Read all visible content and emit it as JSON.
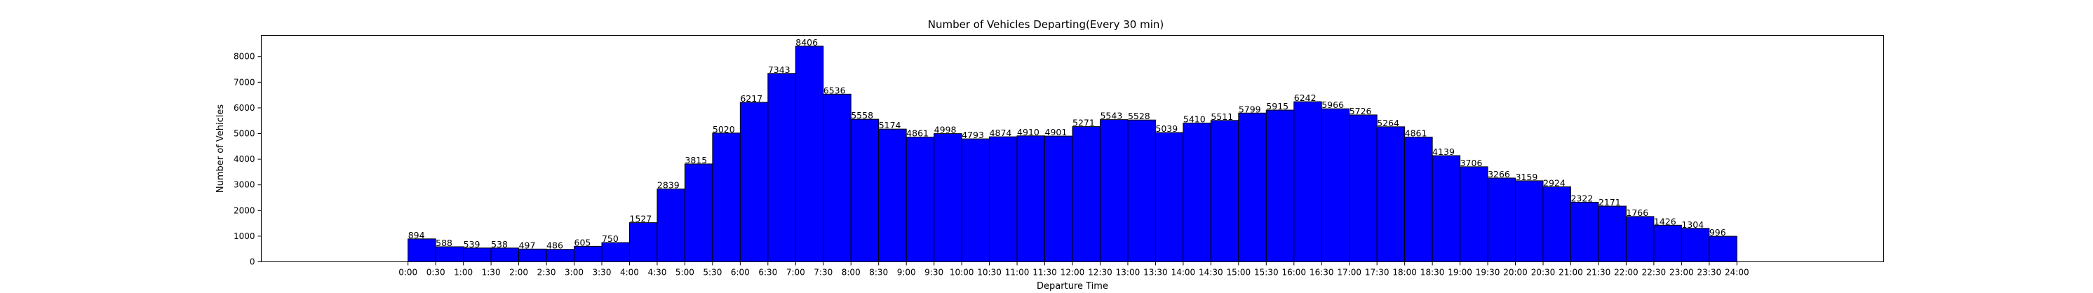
{
  "chart_data": {
    "type": "bar",
    "title": "Number of Vehicles Departing(Every 30 min)",
    "xlabel": "Departure Time",
    "ylabel": "Number of Vehicles",
    "categories": [
      "0:00",
      "0:30",
      "1:00",
      "1:30",
      "2:00",
      "2:30",
      "3:00",
      "3:30",
      "4:00",
      "4:30",
      "5:00",
      "5:30",
      "6:00",
      "6:30",
      "7:00",
      "7:30",
      "8:00",
      "8:30",
      "9:00",
      "9:30",
      "10:00",
      "10:30",
      "11:00",
      "11:30",
      "12:00",
      "12:30",
      "13:00",
      "13:30",
      "14:00",
      "14:30",
      "15:00",
      "15:30",
      "16:00",
      "16:30",
      "17:00",
      "17:30",
      "18:00",
      "18:30",
      "19:00",
      "19:30",
      "20:00",
      "20:30",
      "21:00",
      "21:30",
      "22:00",
      "22:30",
      "23:00",
      "23:30"
    ],
    "values": [
      894,
      588,
      539,
      538,
      497,
      486,
      605,
      750,
      1527,
      2839,
      3815,
      5020,
      6217,
      7343,
      8406,
      6536,
      5558,
      5174,
      4861,
      4998,
      4793,
      4874,
      4910,
      4901,
      5271,
      5543,
      5528,
      5039,
      5410,
      5511,
      5799,
      5915,
      6242,
      5966,
      5726,
      5264,
      4861,
      4139,
      3706,
      3266,
      3159,
      2924,
      2322,
      2171,
      1766,
      1426,
      1304,
      996
    ],
    "x_ticks": [
      "0:00",
      "0:30",
      "1:00",
      "1:30",
      "2:00",
      "2:30",
      "3:00",
      "3:30",
      "4:00",
      "4:30",
      "5:00",
      "5:30",
      "6:00",
      "6:30",
      "7:00",
      "7:30",
      "8:00",
      "8:30",
      "9:00",
      "9:30",
      "10:00",
      "10:30",
      "11:00",
      "11:30",
      "12:00",
      "12:30",
      "13:00",
      "13:30",
      "14:00",
      "14:30",
      "15:00",
      "15:30",
      "16:00",
      "16:30",
      "17:00",
      "17:30",
      "18:00",
      "18:30",
      "19:00",
      "19:30",
      "20:00",
      "20:30",
      "21:00",
      "21:30",
      "22:00",
      "22:30",
      "23:00",
      "23:30",
      "24:00"
    ],
    "y_ticks": [
      0,
      1000,
      2000,
      3000,
      4000,
      5000,
      6000,
      7000,
      8000
    ],
    "ylim": [
      0,
      8826
    ],
    "xlim_bins": [
      -5.3,
      53.3
    ],
    "grid": false,
    "legend": "none",
    "bar_color": "#0000ff",
    "edge_color": "#000000"
  }
}
